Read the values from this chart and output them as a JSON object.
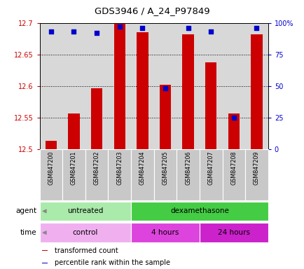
{
  "title": "GDS3946 / A_24_P97849",
  "samples": [
    "GSM847200",
    "GSM847201",
    "GSM847202",
    "GSM847203",
    "GSM847204",
    "GSM847205",
    "GSM847206",
    "GSM847207",
    "GSM847208",
    "GSM847209"
  ],
  "transformed_counts": [
    12.513,
    12.557,
    12.597,
    12.7,
    12.685,
    12.602,
    12.682,
    12.638,
    12.557,
    12.682
  ],
  "percentile_ranks": [
    93,
    93,
    92,
    97,
    96,
    48,
    96,
    93,
    25,
    96
  ],
  "ylim_left": [
    12.5,
    12.7
  ],
  "ylim_right": [
    0,
    100
  ],
  "yticks_left": [
    12.5,
    12.55,
    12.6,
    12.65,
    12.7
  ],
  "yticks_right": [
    0,
    25,
    50,
    75,
    100
  ],
  "ytick_labels_right": [
    "0",
    "25",
    "50",
    "75",
    "100%"
  ],
  "bar_color": "#cc0000",
  "dot_color": "#0000cc",
  "bar_width": 0.5,
  "agent_groups": [
    {
      "label": "untreated",
      "start": 0,
      "end": 4,
      "color": "#aaeaaa"
    },
    {
      "label": "dexamethasone",
      "start": 4,
      "end": 10,
      "color": "#44cc44"
    }
  ],
  "time_groups": [
    {
      "label": "control",
      "start": 0,
      "end": 4,
      "color": "#f0b0f0"
    },
    {
      "label": "4 hours",
      "start": 4,
      "end": 7,
      "color": "#dd44dd"
    },
    {
      "label": "24 hours",
      "start": 7,
      "end": 10,
      "color": "#cc22cc"
    }
  ],
  "legend_items": [
    {
      "label": "transformed count",
      "color": "#cc0000"
    },
    {
      "label": "percentile rank within the sample",
      "color": "#0000cc"
    }
  ],
  "plot_bg_color": "#d8d8d8",
  "label_bg_color": "#c8c8c8",
  "left_tick_color": "#cc0000",
  "right_tick_color": "#0000cc"
}
